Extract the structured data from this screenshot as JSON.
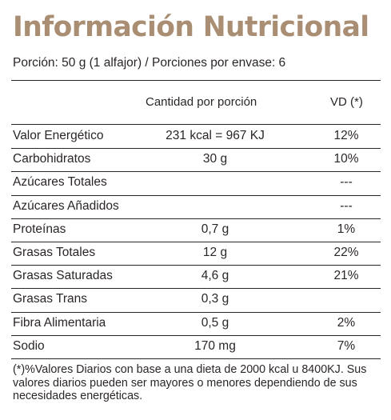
{
  "title": "Información Nutricional",
  "serving": "Porción: 50 g (1 alfajor)  /  Porciones por envase: 6",
  "header": {
    "amount": "Cantidad por porción",
    "vd": "VD (*)"
  },
  "rows": [
    {
      "name": "Valor Energético",
      "amount": "231 kcal = 967 KJ",
      "vd": "12%"
    },
    {
      "name": "Carbohidratos",
      "amount": "30 g",
      "vd": "10%"
    },
    {
      "name": "Azúcares Totales",
      "amount": "",
      "vd": "---"
    },
    {
      "name": "Azúcares Añadidos",
      "amount": "",
      "vd": "---"
    },
    {
      "name": "Proteínas",
      "amount": "0,7 g",
      "vd": "1%"
    },
    {
      "name": "Grasas Totales",
      "amount": "12 g",
      "vd": "22%"
    },
    {
      "name": "Grasas Saturadas",
      "amount": "4,6 g",
      "vd": "21%"
    },
    {
      "name": "Grasas Trans",
      "amount": "0,3 g",
      "vd": ""
    },
    {
      "name": "Fibra Alimentaria",
      "amount": "0,5 g",
      "vd": "2%"
    },
    {
      "name": "Sodio",
      "amount": "170 mg",
      "vd": "7%"
    }
  ],
  "footnote": "(*)%Valores Diarios con base a una dieta de 2000 kcal u 8400KJ. Sus valores diarios pueden ser mayores o menores dependiendo de sus necesidades energéticas.",
  "colors": {
    "title": "#a98e73",
    "text": "#2b2626"
  }
}
